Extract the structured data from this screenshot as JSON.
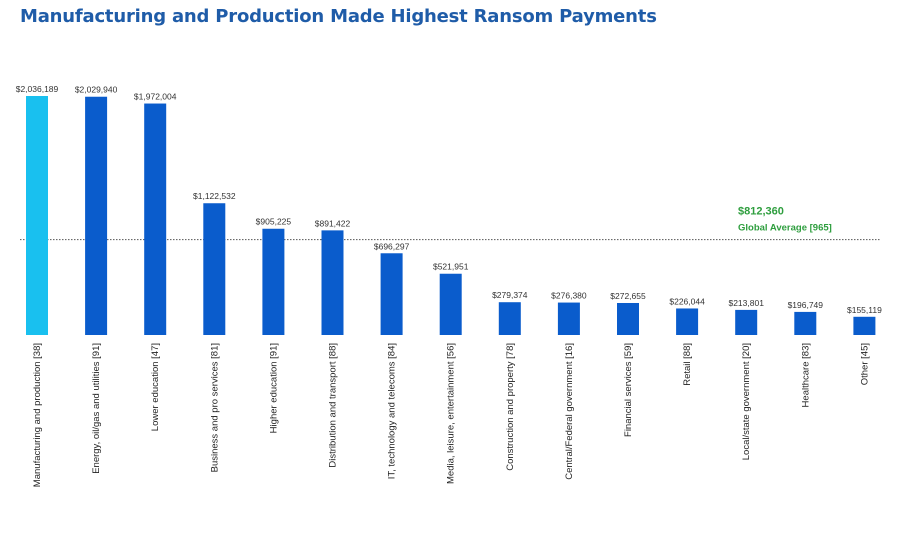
{
  "title": "Manufacturing and Production Made Highest Ransom Payments",
  "chart_data": {
    "type": "bar",
    "title": "Manufacturing and Production Made Highest Ransom Payments",
    "xlabel": "",
    "ylabel": "",
    "ylim": [
      0,
      2036189
    ],
    "grid": false,
    "categories": [
      "Manufacturing and production [38]",
      "Energy, oil/gas and utilities [91]",
      "Lower education [47]",
      "Business and pro services [81]",
      "Higher education [91]",
      "Distribution and transport [88]",
      "IT, technology and telecoms [84]",
      "Media, leisure, entertainment [56]",
      "Construction and property [78]",
      "Central/Federal government [16]",
      "Financial services [59]",
      "Retail [88]",
      "Local/state government [20]",
      "Healthcare [83]",
      "Other [45]"
    ],
    "values": [
      2036189,
      2029940,
      1972004,
      1122532,
      905225,
      891422,
      696297,
      521951,
      279374,
      276380,
      272655,
      226044,
      213801,
      196749,
      155119
    ],
    "value_labels": [
      "$2,036,189",
      "$2,029,940",
      "$1,972,004",
      "$1,122,532",
      "$905,225",
      "$891,422",
      "$696,297",
      "$521,951",
      "$279,374",
      "$276,380",
      "$272,655",
      "$226,044",
      "$213,801",
      "$196,749",
      "$155,119"
    ],
    "bar_colors": [
      "#19c0ef",
      "#0a5ccc",
      "#0a5ccc",
      "#0a5ccc",
      "#0a5ccc",
      "#0a5ccc",
      "#0a5ccc",
      "#0a5ccc",
      "#0a5ccc",
      "#0a5ccc",
      "#0a5ccc",
      "#0a5ccc",
      "#0a5ccc",
      "#0a5ccc",
      "#0a5ccc"
    ],
    "reference_line": {
      "value": 812360,
      "value_label": "$812,360",
      "label": "Global Average [965]",
      "color": "#2e9e3e",
      "style": "dotted"
    }
  }
}
